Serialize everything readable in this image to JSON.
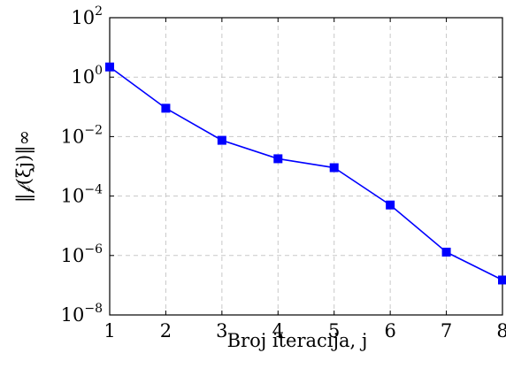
{
  "chart_data": {
    "type": "line",
    "title": "",
    "xlabel": "Broj iteracija, j",
    "ylabel": "‖𝒻(ξj)‖∞",
    "xlim": [
      1,
      8
    ],
    "ylim": [
      1e-08,
      100
    ],
    "yscale": "log",
    "grid": true,
    "x_ticks": [
      "1",
      "2",
      "3",
      "4",
      "5",
      "6",
      "7",
      "8"
    ],
    "y_ticks": [
      {
        "base": "10",
        "exp": "−8",
        "value": 1e-08
      },
      {
        "base": "10",
        "exp": "−6",
        "value": 1e-06
      },
      {
        "base": "10",
        "exp": "−4",
        "value": 0.0001
      },
      {
        "base": "10",
        "exp": "−2",
        "value": 0.01
      },
      {
        "base": "10",
        "exp": "0",
        "value": 1
      },
      {
        "base": "10",
        "exp": "2",
        "value": 100
      }
    ],
    "series": [
      {
        "color": "#0000ff",
        "marker": "square",
        "x": [
          1,
          2,
          3,
          4,
          5,
          6,
          7,
          8
        ],
        "y": [
          2.2,
          0.09,
          0.0075,
          0.0018,
          0.0009,
          5e-05,
          1.3e-06,
          1.5e-07
        ]
      }
    ]
  }
}
